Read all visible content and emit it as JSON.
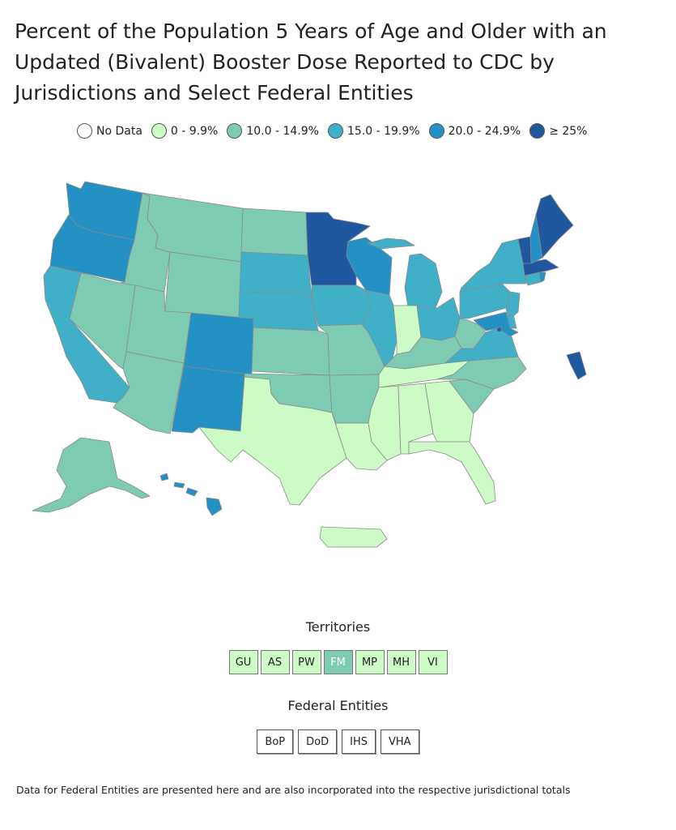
{
  "title": "Percent of the Population 5 Years of Age and Older with an Updated (Bivalent) Booster Dose Reported to CDC by Jurisdictions and Select Federal Entities",
  "colors": {
    "nodata": "#ffffff",
    "c0": "#cdfbc6",
    "c10": "#7ecbb4",
    "c15": "#40b0c9",
    "c20": "#2391c3",
    "c25": "#2058a0",
    "border": "#8a8a8a"
  },
  "legend": [
    {
      "label": "No Data",
      "color_key": "nodata"
    },
    {
      "label": "0 - 9.9%",
      "color_key": "c0"
    },
    {
      "label": "10.0 - 14.9%",
      "color_key": "c10"
    },
    {
      "label": "15.0 - 19.9%",
      "color_key": "c15"
    },
    {
      "label": "20.0 - 24.9%",
      "color_key": "c20"
    },
    {
      "label": "≥ 25%",
      "color_key": "c25"
    }
  ],
  "states": [
    {
      "id": "WA",
      "bin": "c20"
    },
    {
      "id": "OR",
      "bin": "c20"
    },
    {
      "id": "CA",
      "bin": "c15"
    },
    {
      "id": "ID",
      "bin": "c10"
    },
    {
      "id": "NV",
      "bin": "c10"
    },
    {
      "id": "MT",
      "bin": "c10"
    },
    {
      "id": "WY",
      "bin": "c10"
    },
    {
      "id": "UT",
      "bin": "c10"
    },
    {
      "id": "AZ",
      "bin": "c10"
    },
    {
      "id": "CO",
      "bin": "c20"
    },
    {
      "id": "NM",
      "bin": "c20"
    },
    {
      "id": "ND",
      "bin": "c10"
    },
    {
      "id": "SD",
      "bin": "c15"
    },
    {
      "id": "NE",
      "bin": "c15"
    },
    {
      "id": "KS",
      "bin": "c10"
    },
    {
      "id": "OK",
      "bin": "c10"
    },
    {
      "id": "TX",
      "bin": "c0"
    },
    {
      "id": "MN",
      "bin": "c25"
    },
    {
      "id": "IA",
      "bin": "c15"
    },
    {
      "id": "MO",
      "bin": "c10"
    },
    {
      "id": "AR",
      "bin": "c10"
    },
    {
      "id": "LA",
      "bin": "c0"
    },
    {
      "id": "WI",
      "bin": "c20"
    },
    {
      "id": "IL",
      "bin": "c15"
    },
    {
      "id": "MI",
      "bin": "c15"
    },
    {
      "id": "IN",
      "bin": "c0"
    },
    {
      "id": "OH",
      "bin": "c15"
    },
    {
      "id": "KY",
      "bin": "c10"
    },
    {
      "id": "TN",
      "bin": "c0"
    },
    {
      "id": "MS",
      "bin": "c0"
    },
    {
      "id": "AL",
      "bin": "c0"
    },
    {
      "id": "GA",
      "bin": "c0"
    },
    {
      "id": "FL",
      "bin": "c0"
    },
    {
      "id": "SC",
      "bin": "c10"
    },
    {
      "id": "NC",
      "bin": "c10"
    },
    {
      "id": "WV",
      "bin": "c10"
    },
    {
      "id": "VA",
      "bin": "c15"
    },
    {
      "id": "PA",
      "bin": "c15"
    },
    {
      "id": "NY",
      "bin": "c15"
    },
    {
      "id": "NJ",
      "bin": "c15"
    },
    {
      "id": "DE",
      "bin": "c15"
    },
    {
      "id": "MD",
      "bin": "c20"
    },
    {
      "id": "CT",
      "bin": "c15"
    },
    {
      "id": "RI",
      "bin": "c20"
    },
    {
      "id": "MA",
      "bin": "c25"
    },
    {
      "id": "VT",
      "bin": "c25"
    },
    {
      "id": "NH",
      "bin": "c20"
    },
    {
      "id": "ME",
      "bin": "c25"
    },
    {
      "id": "DC",
      "bin": "c25"
    },
    {
      "id": "AK",
      "bin": "c10"
    },
    {
      "id": "HI",
      "bin": "c20"
    },
    {
      "id": "PR",
      "bin": "c0"
    }
  ],
  "territories": {
    "title": "Territories",
    "items": [
      {
        "label": "GU",
        "bin": "c0"
      },
      {
        "label": "AS",
        "bin": "c0"
      },
      {
        "label": "PW",
        "bin": "c0"
      },
      {
        "label": "FM",
        "bin": "c10"
      },
      {
        "label": "MP",
        "bin": "c0"
      },
      {
        "label": "MH",
        "bin": "c0"
      },
      {
        "label": "VI",
        "bin": "c0"
      }
    ]
  },
  "federal": {
    "title": "Federal Entities",
    "items": [
      {
        "label": "BoP"
      },
      {
        "label": "DoD"
      },
      {
        "label": "IHS"
      },
      {
        "label": "VHA"
      }
    ]
  },
  "footnote": "Data for Federal Entities are presented here and are also incorporated into the respective jurisdictional totals"
}
